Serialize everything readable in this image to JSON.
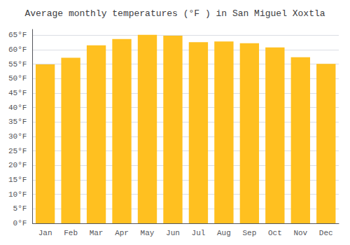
{
  "chart_data": {
    "type": "bar",
    "title": "Average monthly temperatures (°F ) in San Miguel Xoxtla",
    "categories": [
      "Jan",
      "Feb",
      "Mar",
      "Apr",
      "May",
      "Jun",
      "Jul",
      "Aug",
      "Sep",
      "Oct",
      "Nov",
      "Dec"
    ],
    "values": [
      54.9,
      57.2,
      61.5,
      63.7,
      65.1,
      64.8,
      62.6,
      62.8,
      62.2,
      60.8,
      57.4,
      55.1
    ],
    "color": "#FFC020",
    "ylim": [
      0,
      67
    ],
    "yticks": [
      {
        "value": 0,
        "label": "0°F"
      },
      {
        "value": 5,
        "label": "5°F"
      },
      {
        "value": 10,
        "label": "10°F"
      },
      {
        "value": 15,
        "label": "15°F"
      },
      {
        "value": 20,
        "label": "20°F"
      },
      {
        "value": 25,
        "label": "25°F"
      },
      {
        "value": 30,
        "label": "30°F"
      },
      {
        "value": 35,
        "label": "35°F"
      },
      {
        "value": 40,
        "label": "40°F"
      },
      {
        "value": 45,
        "label": "45°F"
      },
      {
        "value": 50,
        "label": "50°F"
      },
      {
        "value": 55,
        "label": "55°F"
      },
      {
        "value": 60,
        "label": "60°F"
      },
      {
        "value": 65,
        "label": "65°F"
      }
    ],
    "grid": true
  }
}
